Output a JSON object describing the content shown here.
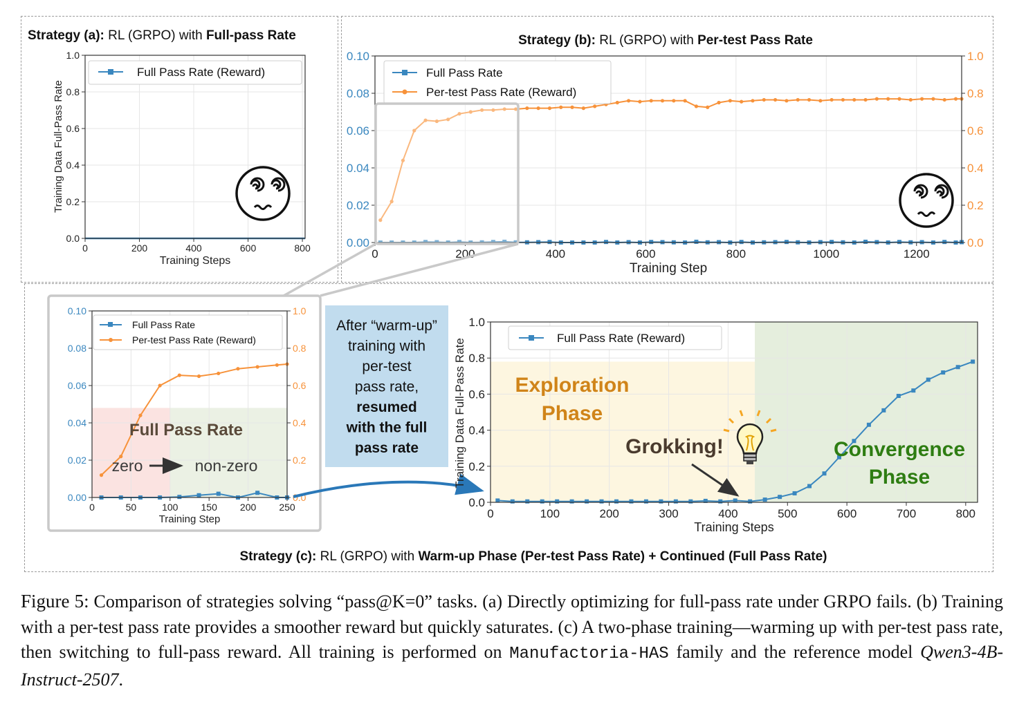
{
  "colors": {
    "blue": "#3a87bf",
    "orange": "#f7923a",
    "grid": "#e6e6e6",
    "exploration_bg": "#fdf6e0",
    "convergence_bg": "#e5eedd",
    "zero_bg": "#fbe3e1",
    "nonzero_bg": "#ebf1e4",
    "exploration_text": "#d08419",
    "convergence_text": "#2e7d12",
    "note_bg": "#c1dcee",
    "zoom_frame": "#c9c9c9"
  },
  "panel_a": {
    "title_label": "Strategy (a):",
    "title_mid": " RL (GRPO) with ",
    "title_bold": "Full-pass Rate",
    "emoji_icon": "dizzy-face-icon"
  },
  "panel_b": {
    "title_label": "Strategy (b):",
    "title_mid": " RL (GRPO) with ",
    "title_bold": "Per-test Pass Rate",
    "emoji_icon": "dizzy-face-icon"
  },
  "panel_c": {
    "title_label": "Strategy (c):",
    "title_mid": " RL (GRPO) with ",
    "title_bold": "Warm-up Phase (Per-test Pass Rate) + Continued (Full Pass Rate)",
    "note_lines": [
      "After “warm-up”",
      "training with",
      "per-test",
      "pass rate,"
    ],
    "note_bold_lines": [
      "resumed",
      "with the full",
      "pass rate"
    ],
    "inset_heading": "Full Pass Rate",
    "inset_zero": "zero",
    "inset_nonzero": "non-zero",
    "exploration_lines": [
      "Exploration",
      "Phase"
    ],
    "convergence_lines": [
      "Convergence",
      "Phase"
    ],
    "grokking": "Grokking!",
    "bulb_icon": "light-bulb-icon"
  },
  "chart_data": [
    {
      "id": "a",
      "type": "line",
      "xlabel": "Training Steps",
      "ylabel": "Training Data Full-Pass Rate",
      "xlim": [
        0,
        810
      ],
      "ylim": [
        0,
        1.0
      ],
      "xticks": [
        "0",
        "200",
        "400",
        "600",
        "800"
      ],
      "yticks": [
        "0.0",
        "0.2",
        "0.4",
        "0.6",
        "0.8",
        "1.0"
      ],
      "grid": true,
      "legend": "top-center",
      "series": [
        {
          "name": "Full Pass Rate (Reward)",
          "x": [
            0,
            810
          ],
          "y": [
            0,
            0
          ]
        }
      ]
    },
    {
      "id": "b",
      "type": "line",
      "xlabel": "Training Step",
      "ylim_left": [
        0,
        0.1
      ],
      "ylim_right": [
        0,
        1.0
      ],
      "xlim": [
        0,
        1300
      ],
      "xticks": [
        "0",
        "200",
        "400",
        "600",
        "800",
        "1000",
        "1200"
      ],
      "yticks_left": [
        "0.00",
        "0.02",
        "0.04",
        "0.06",
        "0.08",
        "0.10"
      ],
      "yticks_right": [
        "0.0",
        "0.2",
        "0.4",
        "0.6",
        "0.8",
        "1.0"
      ],
      "grid": true,
      "legend": "top-left",
      "series": [
        {
          "name": "Full Pass Rate",
          "axis": "left",
          "x": [
            12,
            37,
            62,
            87,
            112,
            137,
            162,
            187,
            212,
            237,
            262,
            287,
            312,
            337,
            362,
            387,
            412,
            437,
            462,
            487,
            512,
            537,
            562,
            587,
            612,
            637,
            662,
            687,
            712,
            737,
            762,
            787,
            812,
            837,
            862,
            887,
            912,
            937,
            962,
            987,
            1012,
            1037,
            1062,
            1087,
            1112,
            1137,
            1162,
            1187,
            1212,
            1237,
            1262,
            1287,
            1312
          ],
          "y": [
            0,
            0,
            0,
            0,
            0.0003,
            0.0002,
            0,
            0.0003,
            0,
            0.0001,
            0.0003,
            0.0004,
            0.0001,
            0.0001,
            0.0002,
            0.0003,
            0,
            0,
            0,
            0,
            0.0003,
            0,
            0.0002,
            0,
            0.0003,
            0.0002,
            0.0001,
            0,
            0.0004,
            0.0001,
            0.0002,
            0,
            0.0003,
            0,
            0.0001,
            0.0002,
            0.0003,
            0.0001,
            0,
            0.0002,
            0.0003,
            0.0001,
            0,
            0.0004,
            0.0002,
            0,
            0.0003,
            0.0001,
            0.0002,
            0,
            0.0003,
            0,
            0.0002
          ]
        },
        {
          "name": "Per-test Pass Rate (Reward)",
          "axis": "right",
          "x": [
            12,
            37,
            62,
            87,
            112,
            137,
            162,
            187,
            212,
            237,
            262,
            287,
            312,
            337,
            362,
            387,
            412,
            437,
            462,
            487,
            512,
            537,
            562,
            587,
            612,
            637,
            662,
            687,
            712,
            737,
            762,
            787,
            812,
            837,
            862,
            887,
            912,
            937,
            962,
            987,
            1012,
            1037,
            1062,
            1087,
            1112,
            1137,
            1162,
            1187,
            1212,
            1237,
            1262,
            1287,
            1312
          ],
          "y": [
            0.12,
            0.22,
            0.44,
            0.6,
            0.655,
            0.65,
            0.66,
            0.69,
            0.7,
            0.71,
            0.71,
            0.715,
            0.715,
            0.72,
            0.72,
            0.72,
            0.725,
            0.725,
            0.72,
            0.73,
            0.74,
            0.75,
            0.76,
            0.755,
            0.76,
            0.76,
            0.76,
            0.76,
            0.73,
            0.725,
            0.75,
            0.76,
            0.755,
            0.76,
            0.765,
            0.765,
            0.76,
            0.765,
            0.765,
            0.76,
            0.765,
            0.765,
            0.765,
            0.765,
            0.77,
            0.77,
            0.77,
            0.765,
            0.77,
            0.77,
            0.765,
            0.77,
            0.77
          ]
        }
      ]
    },
    {
      "id": "c-inset",
      "type": "line",
      "xlabel": "Training Step",
      "xlim": [
        0,
        250
      ],
      "ylim_left": [
        0,
        0.1
      ],
      "ylim_right": [
        0,
        1.0
      ],
      "xticks": [
        "0",
        "50",
        "100",
        "150",
        "200",
        "250"
      ],
      "yticks_left": [
        "0.00",
        "0.02",
        "0.04",
        "0.06",
        "0.08",
        "0.10"
      ],
      "yticks_right": [
        "0.0",
        "0.2",
        "0.4",
        "0.6",
        "0.8",
        "1.0"
      ],
      "grid": true,
      "legend": "top-center",
      "series": [
        {
          "name": "Full Pass Rate",
          "axis": "left",
          "x": [
            12,
            37,
            62,
            87,
            112,
            137,
            162,
            187,
            212,
            237,
            250
          ],
          "y": [
            0,
            0,
            0,
            0,
            0.0003,
            0.0012,
            0.002,
            0,
            0.0025,
            0,
            0
          ]
        },
        {
          "name": "Per-test Pass Rate (Reward)",
          "axis": "right",
          "x": [
            12,
            37,
            62,
            87,
            112,
            137,
            162,
            187,
            212,
            237,
            250
          ],
          "y": [
            0.12,
            0.22,
            0.44,
            0.6,
            0.655,
            0.65,
            0.665,
            0.69,
            0.7,
            0.71,
            0.715
          ]
        }
      ]
    },
    {
      "id": "c",
      "type": "line",
      "xlabel": "Training Steps",
      "ylabel": "Training Data Full-Pass Rate",
      "xlim": [
        0,
        820
      ],
      "ylim": [
        0,
        1.0
      ],
      "xticks": [
        "0",
        "100",
        "200",
        "300",
        "400",
        "500",
        "600",
        "700",
        "800"
      ],
      "yticks": [
        "0.0",
        "0.2",
        "0.4",
        "0.6",
        "0.8",
        "1.0"
      ],
      "grid": true,
      "legend": "top-left",
      "phase_split": 445,
      "series": [
        {
          "name": "Full Pass Rate (Reward)",
          "x": [
            12,
            37,
            62,
            87,
            112,
            137,
            162,
            187,
            212,
            237,
            262,
            287,
            312,
            337,
            362,
            387,
            412,
            437,
            462,
            487,
            512,
            537,
            562,
            587,
            612,
            637,
            662,
            687,
            712,
            737,
            762,
            787,
            812
          ],
          "y": [
            0.01,
            0.005,
            0.005,
            0.005,
            0.005,
            0.005,
            0.005,
            0.005,
            0.005,
            0.005,
            0.005,
            0.005,
            0.005,
            0.005,
            0.008,
            0.005,
            0.01,
            0.005,
            0.015,
            0.03,
            0.05,
            0.09,
            0.16,
            0.25,
            0.34,
            0.43,
            0.51,
            0.59,
            0.62,
            0.68,
            0.72,
            0.75,
            0.78
          ]
        }
      ]
    }
  ],
  "caption": {
    "fig_label": "Figure 5:",
    "text_1": " Comparison of strategies solving “pass@K=0” tasks. (a) Directly optimizing for full-pass rate under GRPO fails. (b) Training with a per-test pass rate provides a smoother reward but quickly saturates. (c) A two-phase training—warming up with per-test pass rate, then switching to full-pass reward. All training is performed on ",
    "mono": "Manufactoria-HAS",
    "text_2": " family and the reference model ",
    "ital": "Qwen3-4B-Instruct-2507",
    "text_3": "."
  }
}
